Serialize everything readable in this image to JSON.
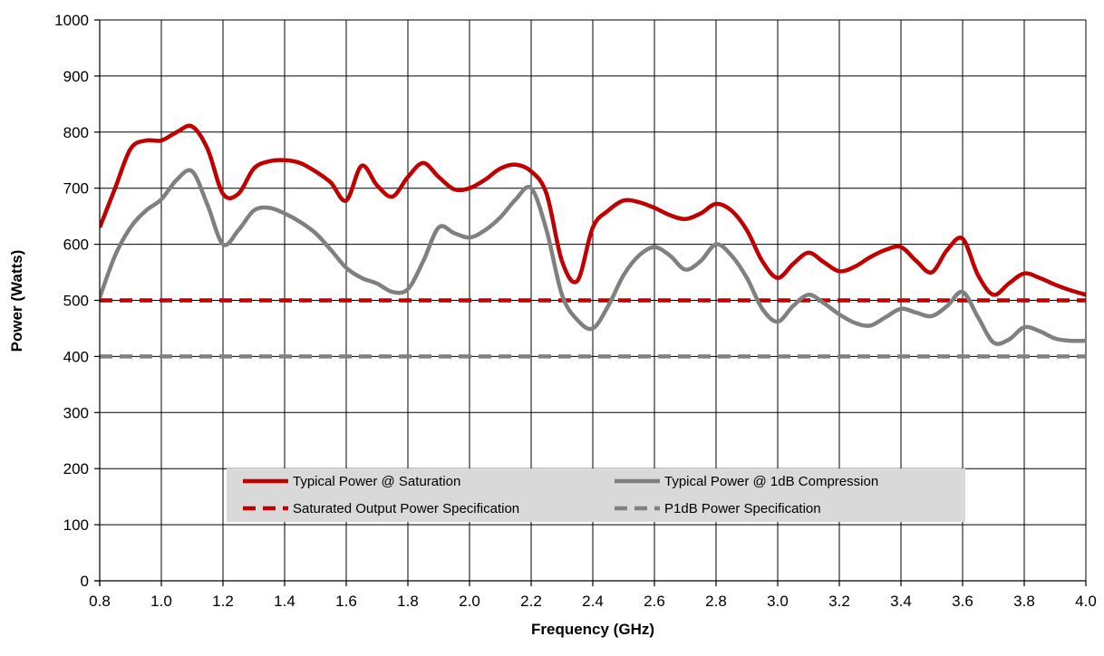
{
  "chart_data": {
    "type": "line",
    "xlabel": "Frequency (GHz)",
    "ylabel": "Power (Watts)",
    "xlim": [
      0.8,
      4.0
    ],
    "ylim": [
      0,
      1000
    ],
    "x_ticks": [
      "0.8",
      "1.0",
      "1.2",
      "1.4",
      "1.6",
      "1.8",
      "2.0",
      "2.2",
      "2.4",
      "2.6",
      "2.8",
      "3.0",
      "3.2",
      "3.4",
      "3.6",
      "3.8",
      "4.0"
    ],
    "y_ticks": [
      "0",
      "100",
      "200",
      "300",
      "400",
      "500",
      "600",
      "700",
      "800",
      "900",
      "1000"
    ],
    "grid": true,
    "legend_position": "bottom-center",
    "series": [
      {
        "name": "Typical Power @ Saturation",
        "color": "#c00000",
        "style": "solid",
        "x": [
          0.8,
          0.85,
          0.9,
          0.95,
          1.0,
          1.05,
          1.1,
          1.15,
          1.2,
          1.25,
          1.3,
          1.35,
          1.4,
          1.45,
          1.5,
          1.55,
          1.6,
          1.65,
          1.7,
          1.75,
          1.8,
          1.85,
          1.9,
          1.95,
          2.0,
          2.05,
          2.1,
          2.15,
          2.2,
          2.25,
          2.3,
          2.35,
          2.4,
          2.45,
          2.5,
          2.55,
          2.6,
          2.65,
          2.7,
          2.75,
          2.8,
          2.85,
          2.9,
          2.95,
          3.0,
          3.05,
          3.1,
          3.15,
          3.2,
          3.25,
          3.3,
          3.35,
          3.4,
          3.45,
          3.5,
          3.55,
          3.6,
          3.65,
          3.7,
          3.75,
          3.8,
          3.85,
          3.9,
          3.95,
          4.0
        ],
        "y": [
          630,
          700,
          770,
          785,
          785,
          800,
          810,
          770,
          690,
          690,
          735,
          748,
          750,
          745,
          730,
          710,
          678,
          740,
          705,
          685,
          720,
          745,
          720,
          698,
          700,
          715,
          735,
          742,
          730,
          690,
          570,
          535,
          630,
          660,
          678,
          675,
          665,
          652,
          645,
          655,
          672,
          660,
          625,
          570,
          540,
          565,
          585,
          568,
          552,
          560,
          577,
          590,
          595,
          570,
          550,
          590,
          610,
          545,
          510,
          530,
          548,
          540,
          528,
          518,
          510
        ]
      },
      {
        "name": "Typical Power @ 1dB Compression",
        "color": "#808080",
        "style": "solid",
        "x": [
          0.8,
          0.85,
          0.9,
          0.95,
          1.0,
          1.05,
          1.1,
          1.15,
          1.2,
          1.25,
          1.3,
          1.35,
          1.4,
          1.45,
          1.5,
          1.55,
          1.6,
          1.65,
          1.7,
          1.75,
          1.8,
          1.85,
          1.9,
          1.95,
          2.0,
          2.05,
          2.1,
          2.15,
          2.2,
          2.25,
          2.3,
          2.35,
          2.4,
          2.45,
          2.5,
          2.55,
          2.6,
          2.65,
          2.7,
          2.75,
          2.8,
          2.85,
          2.9,
          2.95,
          3.0,
          3.05,
          3.1,
          3.15,
          3.2,
          3.25,
          3.3,
          3.35,
          3.4,
          3.45,
          3.5,
          3.55,
          3.6,
          3.65,
          3.7,
          3.75,
          3.8,
          3.85,
          3.9,
          3.95,
          4.0
        ],
        "y": [
          505,
          580,
          630,
          660,
          680,
          715,
          730,
          670,
          600,
          625,
          660,
          665,
          655,
          640,
          620,
          590,
          558,
          540,
          530,
          515,
          520,
          570,
          630,
          620,
          612,
          625,
          648,
          680,
          700,
          625,
          510,
          465,
          450,
          490,
          545,
          580,
          595,
          580,
          555,
          570,
          600,
          580,
          540,
          485,
          462,
          490,
          510,
          495,
          475,
          460,
          455,
          470,
          485,
          478,
          472,
          490,
          515,
          470,
          425,
          430,
          452,
          445,
          432,
          428,
          428
        ]
      },
      {
        "name": "Saturated Output Power Specification",
        "color": "#c00000",
        "style": "dashed",
        "x": [
          0.8,
          4.0
        ],
        "y": [
          500,
          500
        ]
      },
      {
        "name": "P1dB Power Specification",
        "color": "#808080",
        "style": "dashed",
        "x": [
          0.8,
          4.0
        ],
        "y": [
          400,
          400
        ]
      }
    ]
  }
}
